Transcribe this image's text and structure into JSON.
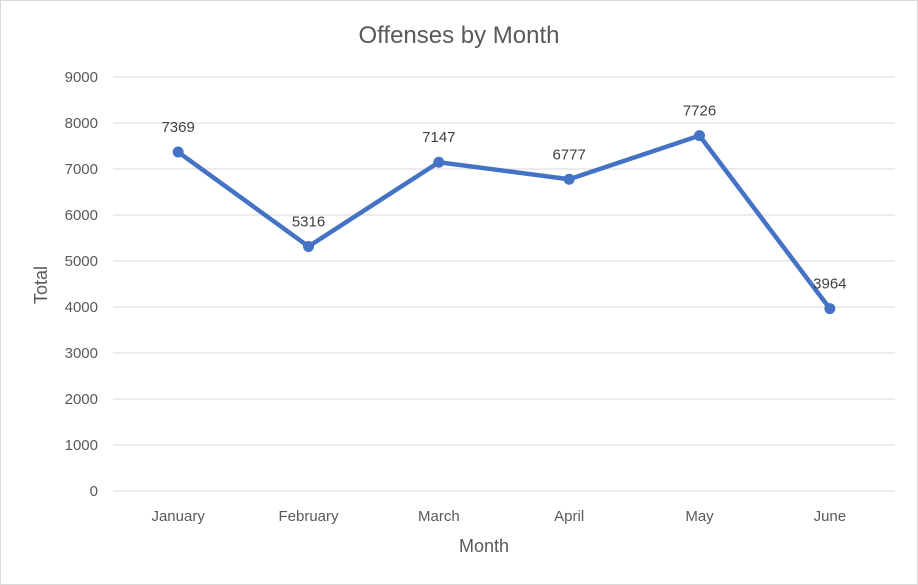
{
  "chart_data": {
    "type": "line",
    "title": "Offenses by Month",
    "xlabel": "Month",
    "ylabel": "Total",
    "categories": [
      "January",
      "February",
      "March",
      "April",
      "May",
      "June"
    ],
    "values": [
      7369,
      5316,
      7147,
      6777,
      7726,
      3964
    ],
    "data_labels": [
      "7369",
      "5316",
      "7147",
      "6777",
      "7726",
      "3964"
    ],
    "ylim": [
      0,
      9000
    ],
    "yticks": [
      "0",
      "1000",
      "2000",
      "3000",
      "4000",
      "5000",
      "6000",
      "7000",
      "8000",
      "9000"
    ],
    "grid": true,
    "legend": "none",
    "series_color": "#4472C4"
  }
}
